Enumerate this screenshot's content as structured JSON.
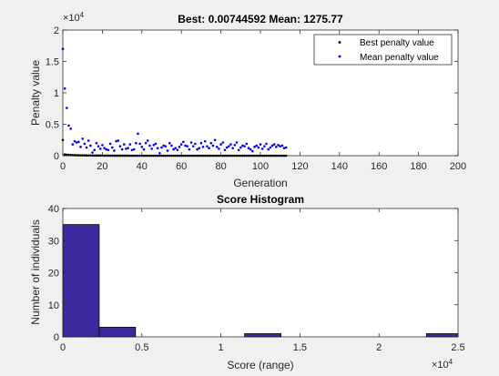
{
  "colors": {
    "figure_bg": "#f0f0f0",
    "axes_bg": "#ffffff",
    "best_series": "#000000",
    "mean_series": "#0000ff",
    "histogram_bar": "#3b2a9e",
    "histogram_edge": "#000000"
  },
  "chart_data": [
    {
      "type": "scatter",
      "title": "Best: 0.00744592 Mean: 1275.77",
      "xlabel": "Generation",
      "ylabel": "Penalty value",
      "xlim": [
        0,
        200
      ],
      "ylim": [
        0,
        20000
      ],
      "x_ticks": [
        0,
        20,
        40,
        60,
        80,
        100,
        120,
        140,
        160,
        180,
        200
      ],
      "y_ticks": [
        0,
        5000,
        10000,
        15000,
        20000
      ],
      "y_tick_labels": [
        "0",
        "0.5",
        "1",
        "1.5",
        "2"
      ],
      "y_multiplier": "×10",
      "y_multiplier_exp": "4",
      "legend_position": "top-right",
      "grid": false,
      "series": [
        {
          "name": "Best penalty value",
          "color": "#000000",
          "x": [
            0,
            1,
            2,
            3,
            4,
            5,
            6,
            7,
            8,
            9,
            10,
            11,
            12,
            13,
            14,
            15,
            16,
            17,
            18,
            19,
            20,
            21,
            22,
            23,
            24,
            25,
            26,
            27,
            28,
            29,
            30,
            31,
            32,
            33,
            34,
            35,
            36,
            37,
            38,
            39,
            40,
            41,
            42,
            43,
            44,
            45,
            46,
            47,
            48,
            49,
            50,
            51,
            52,
            53,
            54,
            55,
            56,
            57,
            58,
            59,
            60,
            61,
            62,
            63,
            64,
            65,
            66,
            67,
            68,
            69,
            70,
            71,
            72,
            73,
            74,
            75,
            76,
            77,
            78,
            79,
            80,
            81,
            82,
            83,
            84,
            85,
            86,
            87,
            88,
            89,
            90,
            91,
            92,
            93,
            94,
            95,
            96,
            97,
            98,
            99,
            100,
            101,
            102,
            103,
            104,
            105,
            106,
            107,
            108,
            109,
            110,
            111,
            112,
            113
          ],
          "y": [
            2500,
            200,
            150,
            120,
            100,
            90,
            80,
            70,
            60,
            55,
            50,
            45,
            40,
            35,
            30,
            28,
            26,
            24,
            22,
            20,
            18,
            16,
            14,
            12,
            10,
            9,
            8,
            7,
            6,
            5,
            4,
            4,
            3,
            3,
            2,
            2,
            2,
            1,
            1,
            1,
            1,
            1,
            1,
            1,
            1,
            1,
            1,
            1,
            1,
            1,
            1,
            1,
            1,
            1,
            1,
            1,
            1,
            1,
            1,
            1,
            1,
            1,
            1,
            1,
            1,
            1,
            1,
            1,
            1,
            1,
            1,
            1,
            1,
            1,
            1,
            1,
            1,
            1,
            1,
            1,
            1,
            1,
            1,
            1,
            1,
            1,
            1,
            1,
            1,
            1,
            1,
            1,
            1,
            1,
            1,
            1,
            1,
            1,
            1,
            1,
            0.01,
            0.01,
            0.01,
            0.01,
            0.01,
            0.01,
            0.01,
            0.01,
            0.01,
            0.01,
            0.01,
            0.01,
            0.01,
            0.01
          ]
        },
        {
          "name": "Mean penalty value",
          "color": "#0000ff",
          "x": [
            0,
            1,
            2,
            3,
            4,
            5,
            6,
            7,
            8,
            9,
            10,
            11,
            12,
            13,
            14,
            15,
            16,
            17,
            18,
            19,
            20,
            21,
            22,
            23,
            24,
            25,
            26,
            27,
            28,
            29,
            30,
            31,
            32,
            33,
            34,
            35,
            36,
            37,
            38,
            39,
            40,
            41,
            42,
            43,
            44,
            45,
            46,
            47,
            48,
            49,
            50,
            51,
            52,
            53,
            54,
            55,
            56,
            57,
            58,
            59,
            60,
            61,
            62,
            63,
            64,
            65,
            66,
            67,
            68,
            69,
            70,
            71,
            72,
            73,
            74,
            75,
            76,
            77,
            78,
            79,
            80,
            81,
            82,
            83,
            84,
            85,
            86,
            87,
            88,
            89,
            90,
            91,
            92,
            93,
            94,
            95,
            96,
            97,
            98,
            99,
            100,
            101,
            102,
            103,
            104,
            105,
            106,
            107,
            108,
            109,
            110,
            111,
            112,
            113
          ],
          "y": [
            17000,
            10700,
            7600,
            4800,
            4300,
            1800,
            2300,
            2100,
            2200,
            1400,
            2700,
            1900,
            1300,
            2400,
            1600,
            500,
            900,
            2000,
            1500,
            1100,
            1700,
            1200,
            1000,
            900,
            1900,
            1300,
            800,
            2300,
            2400,
            1500,
            1000,
            1800,
            1100,
            1200,
            1800,
            900,
            1000,
            2000,
            3500,
            1900,
            1400,
            1000,
            2000,
            2400,
            1600,
            1100,
            1700,
            1900,
            1200,
            400,
            1300,
            1600,
            1500,
            800,
            2000,
            1600,
            1000,
            1200,
            900,
            1400,
            1800,
            2200,
            1600,
            1500,
            1000,
            2100,
            1500,
            1900,
            1000,
            1200,
            2000,
            1400,
            2300,
            1500,
            1200,
            2000,
            1600,
            2500,
            1400,
            1100,
            1800,
            2100,
            900,
            1300,
            1500,
            1800,
            1200,
            1700,
            2100,
            900,
            1300,
            1600,
            1500,
            1900,
            1200,
            1000,
            700,
            1400,
            1600,
            1300,
            1800,
            1100,
            1500,
            1900,
            1000,
            1300,
            1600,
            1800,
            1400,
            1700,
            1500,
            1600,
            1200,
            1300
          ]
        }
      ]
    },
    {
      "type": "bar",
      "title": "Score Histogram",
      "xlabel": "Score (range)",
      "ylabel": "Number of individuals",
      "xlim": [
        0,
        25000
      ],
      "ylim": [
        0,
        40
      ],
      "x_ticks": [
        0,
        5000,
        10000,
        15000,
        20000,
        25000
      ],
      "x_tick_labels": [
        "0",
        "0.5",
        "1",
        "1.5",
        "2",
        "2.5"
      ],
      "y_ticks": [
        0,
        10,
        20,
        30,
        40
      ],
      "x_multiplier": "×10",
      "x_multiplier_exp": "4",
      "grid": false,
      "bin_edges": [
        0,
        2300,
        4600,
        6900,
        9200,
        11500,
        13800,
        16100,
        18400,
        20700,
        23000,
        25300
      ],
      "values": [
        35,
        3,
        0,
        0,
        0,
        1,
        0,
        0,
        0,
        0,
        1
      ]
    }
  ]
}
